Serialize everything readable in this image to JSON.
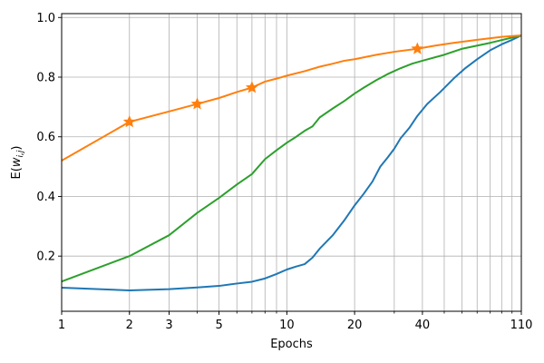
{
  "chart_data": {
    "type": "line",
    "xscale": "log",
    "xlabel": "Epochs",
    "ylabel": "E(w_{i,j})",
    "xlim": [
      1,
      110
    ],
    "ylim": [
      0.0,
      1.0
    ],
    "xticks": [
      {
        "value": 1,
        "label": "1"
      },
      {
        "value": 2,
        "label": "2"
      },
      {
        "value": 3,
        "label": "3"
      },
      {
        "value": 5,
        "label": "5"
      },
      {
        "value": 10,
        "label": "10"
      },
      {
        "value": 20,
        "label": "20"
      },
      {
        "value": 40,
        "label": "40"
      },
      {
        "value": 110,
        "label": "110"
      }
    ],
    "yticks": [
      {
        "value": 0.2,
        "label": "0.2"
      },
      {
        "value": 0.4,
        "label": "0.4"
      },
      {
        "value": 0.6,
        "label": "0.6"
      },
      {
        "value": 0.8,
        "label": "0.8"
      },
      {
        "value": 1.0,
        "label": "1.0"
      }
    ],
    "grid": true,
    "series": [
      {
        "color": "#1f77b4",
        "x": [
          1,
          2,
          3,
          4,
          5,
          6,
          7,
          8,
          9,
          10,
          11,
          12,
          13,
          14,
          16,
          18,
          20,
          22,
          24,
          26,
          28,
          30,
          32,
          35,
          38,
          42,
          48,
          55,
          62,
          70,
          80,
          90,
          100,
          110
        ],
        "y": [
          0.094,
          0.085,
          0.089,
          0.095,
          0.1,
          0.108,
          0.114,
          0.125,
          0.14,
          0.155,
          0.165,
          0.173,
          0.195,
          0.225,
          0.27,
          0.32,
          0.37,
          0.41,
          0.45,
          0.5,
          0.53,
          0.56,
          0.595,
          0.63,
          0.67,
          0.71,
          0.75,
          0.795,
          0.83,
          0.86,
          0.89,
          0.91,
          0.925,
          0.94
        ]
      },
      {
        "color": "#2ca02c",
        "x": [
          1,
          2,
          3,
          4,
          5,
          6,
          7,
          8,
          9,
          10,
          11,
          12,
          13,
          14,
          16,
          18,
          20,
          22,
          25,
          28,
          32,
          36,
          40,
          50,
          60,
          80,
          110
        ],
        "y": [
          0.115,
          0.2,
          0.27,
          0.345,
          0.395,
          0.44,
          0.475,
          0.525,
          0.555,
          0.58,
          0.6,
          0.62,
          0.635,
          0.665,
          0.695,
          0.72,
          0.745,
          0.765,
          0.79,
          0.81,
          0.83,
          0.845,
          0.855,
          0.875,
          0.895,
          0.915,
          0.94
        ]
      },
      {
        "color": "#ff7f0e",
        "marker": "star",
        "x": [
          1,
          2,
          3,
          4,
          5,
          6,
          7,
          8,
          9,
          10,
          12,
          14,
          16,
          18,
          20,
          25,
          30,
          38,
          45,
          55,
          70,
          90,
          110
        ],
        "y": [
          0.52,
          0.65,
          0.685,
          0.71,
          0.73,
          0.75,
          0.765,
          0.785,
          0.795,
          0.805,
          0.82,
          0.835,
          0.845,
          0.855,
          0.86,
          0.875,
          0.885,
          0.895,
          0.905,
          0.915,
          0.925,
          0.935,
          0.94
        ],
        "marker_x": [
          2,
          4,
          7,
          38
        ]
      }
    ]
  }
}
